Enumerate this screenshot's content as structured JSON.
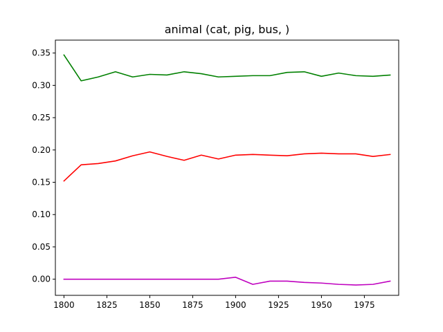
{
  "chart_data": {
    "type": "line",
    "title": "animal (cat, pig, bus, )",
    "xlabel": "",
    "ylabel": "",
    "xlim": [
      1795,
      1995
    ],
    "ylim": [
      -0.025,
      0.37
    ],
    "grid": false,
    "legend": "none",
    "xticks": [
      1800,
      1825,
      1850,
      1875,
      1900,
      1925,
      1950,
      1975
    ],
    "xtick_labels": [
      "1800",
      "1825",
      "1850",
      "1875",
      "1900",
      "1925",
      "1950",
      "1975"
    ],
    "yticks": [
      0.0,
      0.05,
      0.1,
      0.15,
      0.2,
      0.25,
      0.3,
      0.35
    ],
    "ytick_labels": [
      "0.00",
      "0.05",
      "0.10",
      "0.15",
      "0.20",
      "0.25",
      "0.30",
      "0.35"
    ],
    "x": [
      1800,
      1810,
      1820,
      1830,
      1840,
      1850,
      1860,
      1870,
      1880,
      1890,
      1900,
      1910,
      1920,
      1930,
      1940,
      1950,
      1960,
      1970,
      1980,
      1990
    ],
    "series": [
      {
        "color": "#008000",
        "values": [
          0.347,
          0.307,
          0.313,
          0.321,
          0.313,
          0.317,
          0.316,
          0.321,
          0.318,
          0.313,
          0.314,
          0.315,
          0.315,
          0.32,
          0.321,
          0.314,
          0.319,
          0.315,
          0.314,
          0.316
        ]
      },
      {
        "color": "#ff0000",
        "values": [
          0.152,
          0.177,
          0.179,
          0.183,
          0.191,
          0.197,
          0.19,
          0.184,
          0.192,
          0.186,
          0.192,
          0.193,
          0.192,
          0.191,
          0.194,
          0.195,
          0.194,
          0.194,
          0.19,
          0.193
        ]
      },
      {
        "color": "#bf00bf",
        "values": [
          0.0,
          0.0,
          0.0,
          0.0,
          0.0,
          0.0,
          0.0,
          0.0,
          0.0,
          0.0,
          0.003,
          -0.008,
          -0.003,
          -0.003,
          -0.005,
          -0.006,
          -0.008,
          -0.009,
          -0.008,
          -0.003
        ]
      }
    ]
  }
}
